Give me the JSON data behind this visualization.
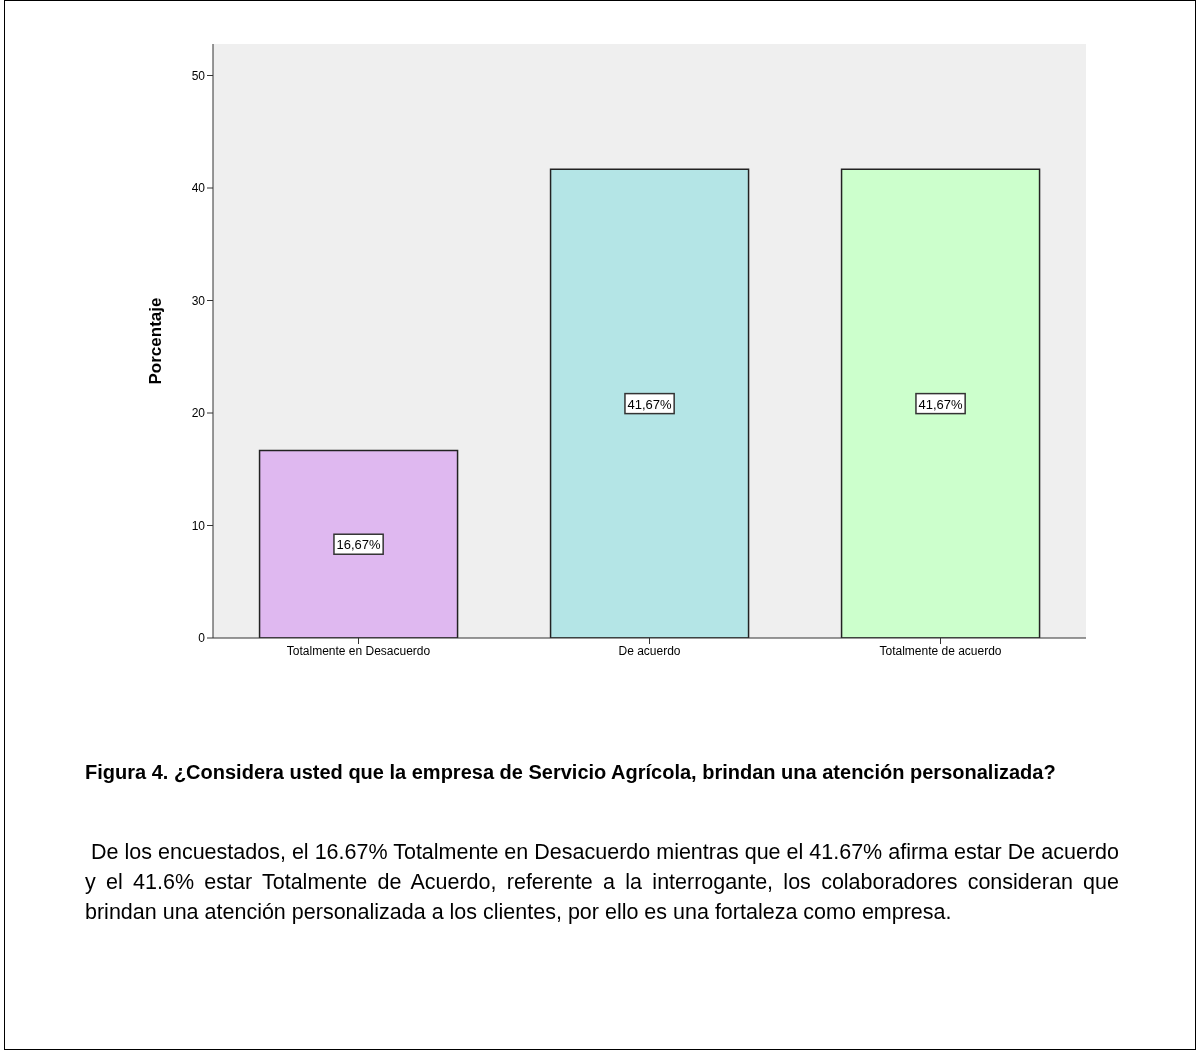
{
  "chart_data": {
    "type": "bar",
    "title": "Figura 4. ¿Considera usted que la empresa de Servicio Agrícola, brindan una atención personalizada?",
    "ylabel": "Porcentaje",
    "categories": [
      "Totalmente en Desacuerdo",
      "De acuerdo",
      "Totalmente de acuerdo"
    ],
    "values": [
      16.67,
      41.67,
      41.67
    ],
    "colors": [
      "#dfb8f0",
      "#b4e5e6",
      "#ccffcc"
    ],
    "value_labels": [
      "16,67%",
      "41,67%",
      "41,67%"
    ],
    "ylim": [
      0,
      52.8
    ],
    "yticks": [
      0,
      10,
      20,
      30,
      40,
      50
    ],
    "grid": false,
    "legend": false,
    "annotations": [
      "De los encuestados, el 16.67% Totalmente en Desacuerdo mientras que el 41.67% afirma estar De acuerdo y el 41.6% estar Totalmente de Acuerdo, referente a la interrogante, los colaboradores consideran que brindan una atención personalizada a los clientes, por ello es una fortaleza como empresa."
    ]
  }
}
